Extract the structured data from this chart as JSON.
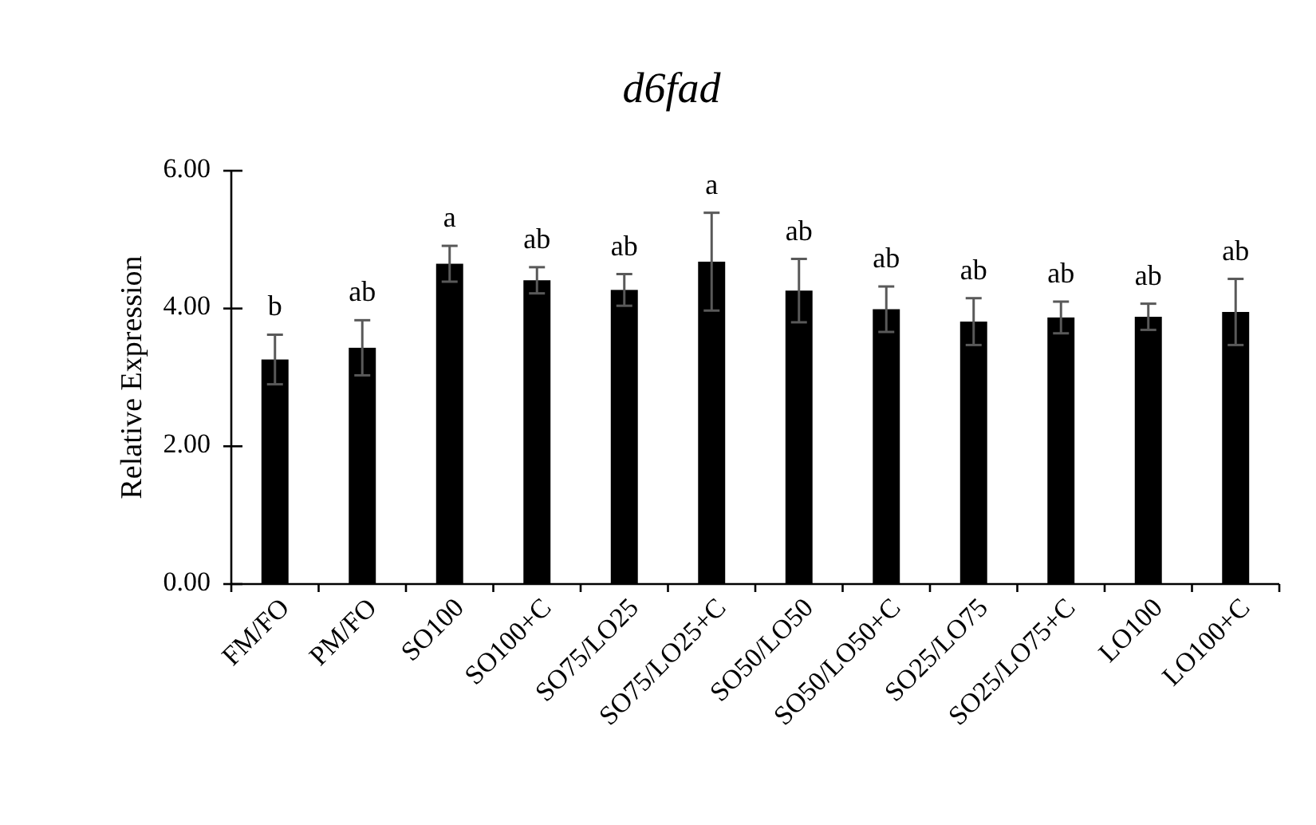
{
  "chart_data": {
    "type": "bar",
    "title": "d6fad",
    "ylabel": "Relative Expression",
    "categories": [
      "FM/FO",
      "PM/FO",
      "SO100",
      "SO100+C",
      "SO75/LO25",
      "SO75/LO25+C",
      "SO50/LO50",
      "SO50/LO50+C",
      "SO25/LO75",
      "SO25/LO75+C",
      "LO100",
      "LO100+C"
    ],
    "values": [
      3.26,
      3.43,
      4.65,
      4.41,
      4.27,
      4.68,
      4.26,
      3.99,
      3.81,
      3.87,
      3.88,
      3.95
    ],
    "errors": [
      0.36,
      0.4,
      0.26,
      0.19,
      0.23,
      0.71,
      0.46,
      0.33,
      0.34,
      0.23,
      0.19,
      0.48
    ],
    "color": "#000000",
    "ylim": [
      0,
      6
    ],
    "yticks": [
      {
        "value": 0,
        "label": "0.00"
      },
      {
        "value": 2,
        "label": "2.00"
      },
      {
        "value": 4,
        "label": "4.00"
      },
      {
        "value": 6,
        "label": "6.00"
      }
    ],
    "annotations": [
      {
        "text": "b",
        "x": "FM/FO",
        "y": 3.62
      },
      {
        "text": "ab",
        "x": "PM/FO",
        "y": 3.83
      },
      {
        "text": "a",
        "x": "SO100",
        "y": 4.91
      },
      {
        "text": "ab",
        "x": "SO100+C",
        "y": 4.6
      },
      {
        "text": "ab",
        "x": "SO75/LO25",
        "y": 4.5
      },
      {
        "text": "a",
        "x": "SO75/LO25+C",
        "y": 5.39
      },
      {
        "text": "ab",
        "x": "SO50/LO50",
        "y": 4.72
      },
      {
        "text": "ab",
        "x": "SO50/LO50+C",
        "y": 4.32
      },
      {
        "text": "ab",
        "x": "SO25/LO75",
        "y": 4.15
      },
      {
        "text": "ab",
        "x": "SO25/LO75+C",
        "y": 4.1
      },
      {
        "text": "ab",
        "x": "LO100",
        "y": 4.07
      },
      {
        "text": "ab",
        "x": "LO100+C",
        "y": 4.43
      }
    ]
  }
}
